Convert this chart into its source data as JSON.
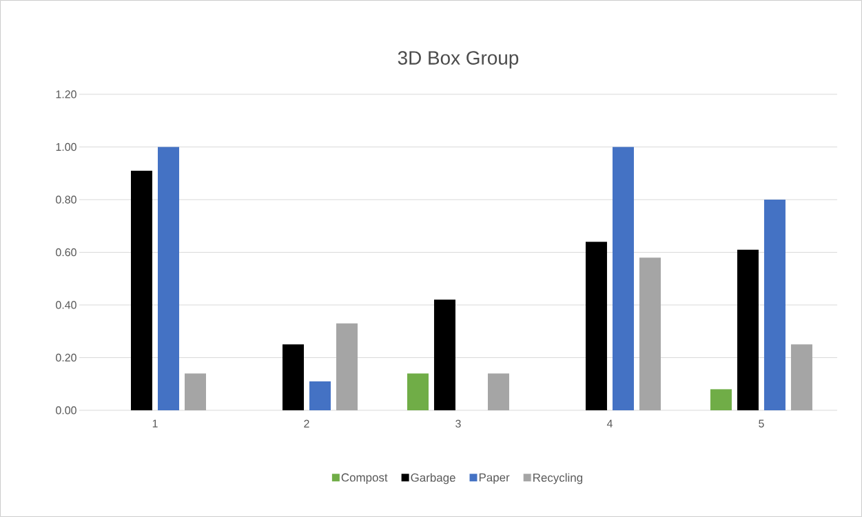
{
  "chart_data": {
    "type": "bar",
    "title": "3D Box Group",
    "categories": [
      "1",
      "2",
      "3",
      "4",
      "5"
    ],
    "series": [
      {
        "name": "Compost",
        "color": "#70ad47",
        "values": [
          0,
          0,
          0.14,
          0,
          0.08
        ]
      },
      {
        "name": "Garbage",
        "color": "#000000",
        "values": [
          0.91,
          0.25,
          0.42,
          0.64,
          0.61
        ]
      },
      {
        "name": "Paper",
        "color": "#4472c4",
        "values": [
          1.0,
          0.11,
          0,
          1.0,
          0.8
        ]
      },
      {
        "name": "Recycling",
        "color": "#a5a5a5",
        "values": [
          0.14,
          0.33,
          0.14,
          0.58,
          0.25
        ]
      }
    ],
    "ylim": [
      0,
      1.2
    ],
    "yticks": [
      {
        "value": 0,
        "label": "0.00"
      },
      {
        "value": 0.2,
        "label": "0.20"
      },
      {
        "value": 0.4,
        "label": "0.40"
      },
      {
        "value": 0.6,
        "label": "0.60"
      },
      {
        "value": 0.8,
        "label": "0.80"
      },
      {
        "value": 1.0,
        "label": "1.00"
      },
      {
        "value": 1.2,
        "label": "1.20"
      }
    ],
    "grid": "y",
    "legend": "bottom"
  }
}
